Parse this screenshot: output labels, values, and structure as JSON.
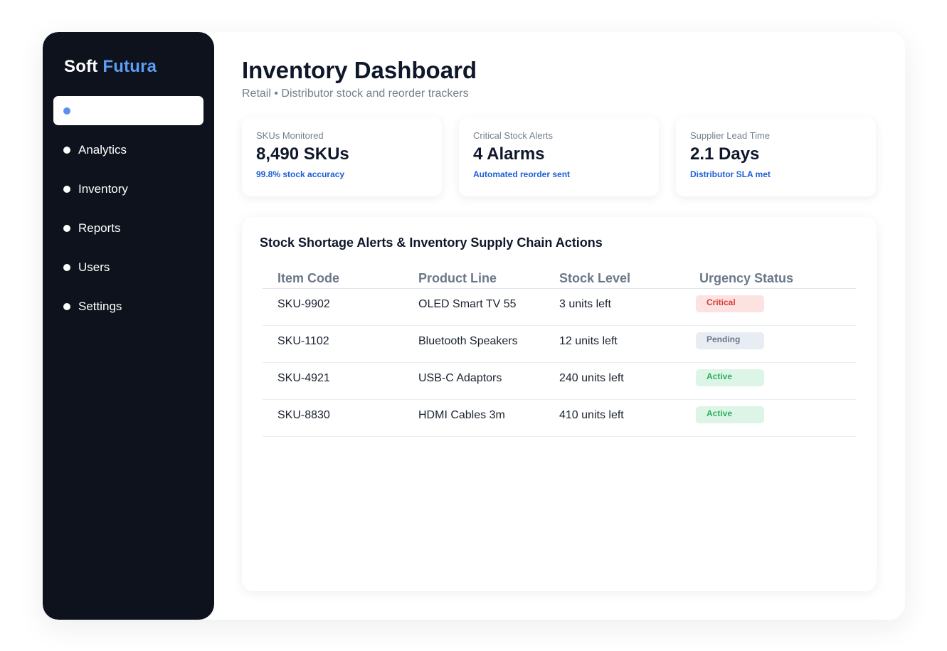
{
  "brand": {
    "name": "Soft",
    "accent": "Futura"
  },
  "sidebar": {
    "items": [
      {
        "label": "",
        "active": true
      },
      {
        "label": "Analytics"
      },
      {
        "label": "Inventory"
      },
      {
        "label": "Reports"
      },
      {
        "label": "Users"
      },
      {
        "label": "Settings"
      }
    ]
  },
  "header": {
    "title": "Inventory Dashboard",
    "subtitle": "Retail • Distributor stock and reorder trackers"
  },
  "cards": [
    {
      "label": "SKUs Monitored",
      "value": "8,490 SKUs",
      "note": "99.8% stock accuracy"
    },
    {
      "label": "Critical Stock Alerts",
      "value": "4 Alarms",
      "note": "Automated reorder sent"
    },
    {
      "label": "Supplier Lead Time",
      "value": "2.1 Days",
      "note": "Distributor SLA met"
    }
  ],
  "panel": {
    "title": "Stock Shortage Alerts & Inventory Supply Chain Actions",
    "columns": [
      "Item Code",
      "Product Line",
      "Stock Level",
      "Urgency Status"
    ],
    "rows": [
      {
        "code": "SKU-9902",
        "product": "OLED Smart TV 55",
        "stock": "3 units left",
        "status": "Critical"
      },
      {
        "code": "SKU-1102",
        "product": "Bluetooth Speakers",
        "stock": "12 units left",
        "status": "Pending"
      },
      {
        "code": "SKU-4921",
        "product": "USB-C Adaptors",
        "stock": "240 units left",
        "status": "Active"
      },
      {
        "code": "SKU-8830",
        "product": "HDMI Cables 3m",
        "stock": "410 units left",
        "status": "Active"
      }
    ]
  },
  "colors": {
    "sidebar_bg": "#0d121c",
    "brand_accent": "#5b9cf5",
    "note_blue": "#1d5fd6",
    "critical": "#d93a3a",
    "pending": "#6b7889",
    "active": "#2fae5e"
  }
}
